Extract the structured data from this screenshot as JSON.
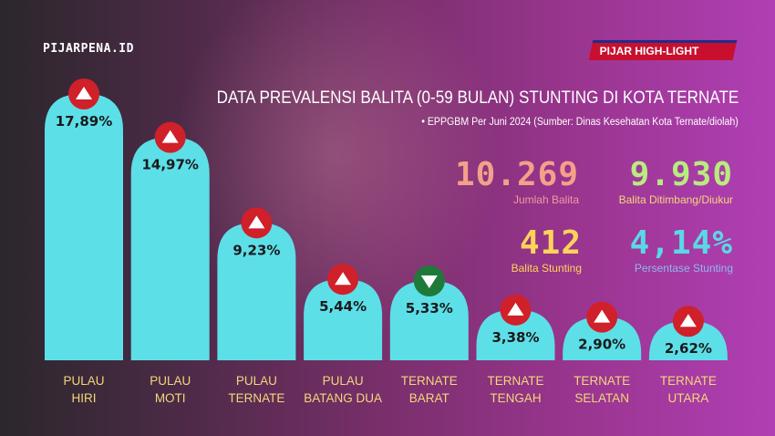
{
  "header": {
    "logo": "PIJARPENA.ID",
    "badge": "PIJAR HIGH-LIGHT"
  },
  "title": "DATA PREVALENSI BALITA (0-59 BULAN) STUNTING DI KOTA TERNATE",
  "source": "•  EPPGBM Per Juni 2024 (Sumber: Dinas Kesehatan Kota Ternate/diolah)",
  "stats": [
    {
      "value": "10.269",
      "label": "Jumlah Balita",
      "color": "#f4a08a",
      "label_color": "#f09aa0"
    },
    {
      "value": "9.930",
      "label": "Balita Ditimbang/Diukur",
      "color": "#b8ec7e",
      "label_color": "#f3d77a"
    },
    {
      "value": "412",
      "label": "Balita Stunting",
      "color": "#ffd35a",
      "label_color": "#ffd35a"
    },
    {
      "value": "4,14%",
      "label": "Persentase Stunting",
      "color": "#5ad8e6",
      "label_color": "#8fb8f0"
    }
  ],
  "chart_data": {
    "type": "bar",
    "categories": [
      [
        "PULAU",
        "HIRI"
      ],
      [
        "PULAU",
        "MOTI"
      ],
      [
        "PULAU",
        "TERNATE"
      ],
      [
        "PULAU",
        "BATANG DUA"
      ],
      [
        "TERNATE",
        "BARAT"
      ],
      [
        "TERNATE",
        "TENGAH"
      ],
      [
        "TERNATE",
        "SELATAN"
      ],
      [
        "TERNATE",
        "UTARA"
      ]
    ],
    "values": [
      17.89,
      14.97,
      9.23,
      5.44,
      5.33,
      3.38,
      2.9,
      2.62
    ],
    "labels": [
      "17,89%",
      "14,97%",
      "9,23%",
      "5,44%",
      "5,33%",
      "3,38%",
      "2,90%",
      "2,62%"
    ],
    "trend": [
      "up",
      "up",
      "up",
      "up",
      "down",
      "up",
      "up",
      "up"
    ],
    "colors": {
      "bar": "#5ddfe8",
      "up": "#d0202a",
      "down": "#1f7a3a",
      "category": "#f3d77a"
    }
  }
}
